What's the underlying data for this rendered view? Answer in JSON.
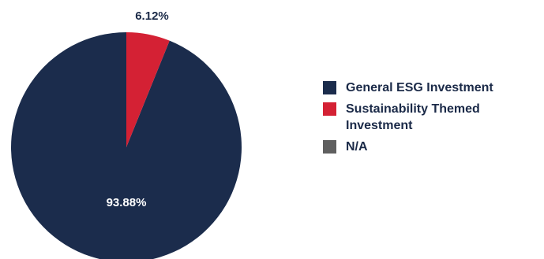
{
  "chart_data": {
    "type": "pie",
    "slices": [
      {
        "name": "General ESG Investment",
        "value": 93.88,
        "label": "93.88%",
        "color": "#1b2c4c"
      },
      {
        "name": "Sustainability Themed Investment",
        "value": 6.12,
        "label": "6.12%",
        "color": "#d42134"
      },
      {
        "name": "N/A",
        "value": 0,
        "label": "",
        "color": "#5f5f5f"
      }
    ],
    "legend_position": "right",
    "label_colors": {
      "inside": "#ffffff",
      "outside": "#1b2a48"
    }
  }
}
